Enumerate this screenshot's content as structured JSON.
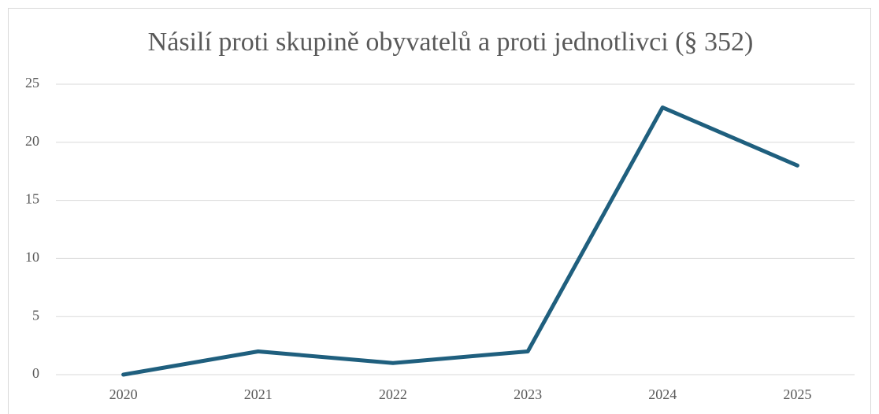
{
  "chart_data": {
    "type": "line",
    "title": "Násilí proti skupině obyvatelů a proti jednotlivci (§ 352)",
    "categories": [
      "2020",
      "2021",
      "2022",
      "2023",
      "2024",
      "2025"
    ],
    "values": [
      0,
      2,
      1,
      2,
      23,
      18
    ],
    "color": "#1f5f7e",
    "ylim": [
      0,
      25
    ],
    "yticks": [
      0,
      5,
      10,
      15,
      20,
      25
    ],
    "grid": true
  }
}
